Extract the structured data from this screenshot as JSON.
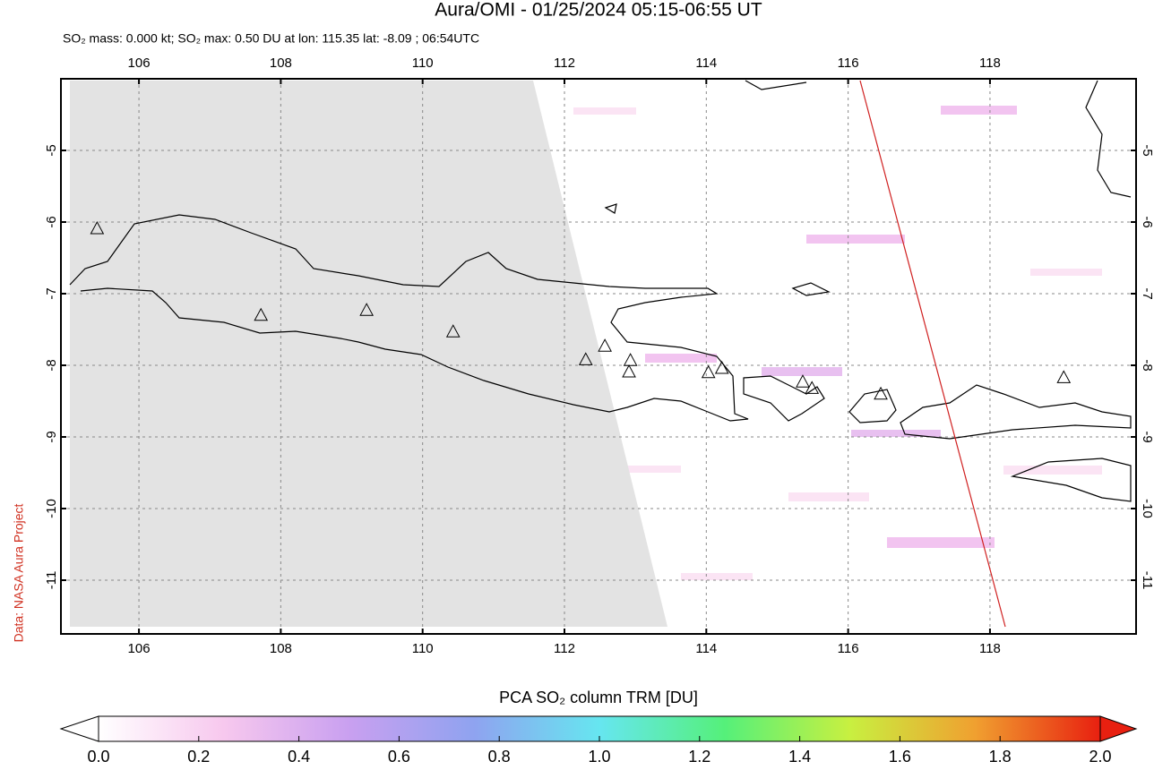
{
  "title": "Aura/OMI - 01/25/2024 05:15-06:55 UT",
  "subtitle": "SO₂ mass: 0.000 kt; SO₂ max: 0.50 DU at lon: 115.35 lat: -8.09 ; 06:54UTC",
  "credit": "Data: NASA Aura Project",
  "chart_data": {
    "type": "map",
    "xlim": [
      104.9,
      120.06
    ],
    "ylim": [
      -11.75,
      -4.0
    ],
    "xticks": [
      106,
      108,
      110,
      112,
      114,
      116,
      118
    ],
    "yticks": [
      -5,
      -6,
      -7,
      -8,
      -9,
      -10,
      -11
    ],
    "grid": true,
    "volcanoes": {
      "lon": [
        105.41,
        107.72,
        109.21,
        110.43,
        112.3,
        112.57,
        112.93,
        112.91,
        114.03,
        114.22,
        115.36,
        115.49,
        116.46,
        119.04
      ],
      "lat": [
        -6.1,
        -7.31,
        -7.24,
        -7.54,
        -7.93,
        -7.74,
        -7.94,
        -8.1,
        -8.11,
        -8.05,
        -8.24,
        -8.33,
        -8.41,
        -8.18
      ]
    },
    "colorbar": {
      "label": "PCA SO₂ column TRM [DU]",
      "lim": [
        0,
        2
      ],
      "ticks": [
        {
          "value": 0,
          "label": "0.0"
        },
        {
          "value": 0.2,
          "label": "0.2"
        },
        {
          "value": 0.4,
          "label": "0.4"
        },
        {
          "value": 0.6,
          "label": "0.6"
        },
        {
          "value": 0.8,
          "label": "0.8"
        },
        {
          "value": 1,
          "label": "1.0"
        },
        {
          "value": 1.2,
          "label": "1.2"
        },
        {
          "value": 1.4,
          "label": "1.4"
        },
        {
          "value": 1.6,
          "label": "1.6"
        },
        {
          "value": 1.8,
          "label": "1.8"
        },
        {
          "value": 2,
          "label": "2.0"
        }
      ],
      "colors": [
        "#ffffff",
        "#f7c8ee",
        "#c9a0f0",
        "#8fa3f0",
        "#66e6f0",
        "#55f07a",
        "#c8f040",
        "#f0a030",
        "#e82010"
      ]
    }
  }
}
